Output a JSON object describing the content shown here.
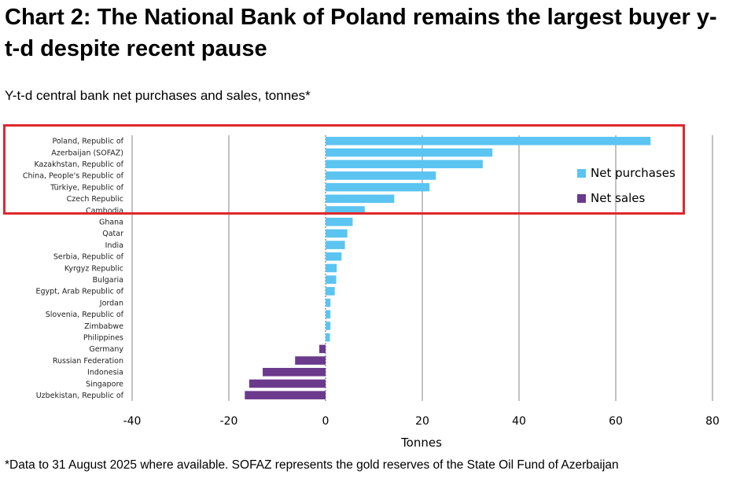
{
  "title": "Chart 2: The National Bank of Poland remains the largest buyer y-t-d despite recent pause",
  "subtitle": "Y-t-d central bank net purchases and sales, tonnes*",
  "footnote": "*Data to 31 August 2025 where available. SOFAZ represents the gold reserves of the State Oil Fund of Azerbaijan",
  "colors": {
    "net_purchases": "#5bc4f1",
    "net_sales": "#6b3a8c",
    "gridline": "#9a9a9a",
    "highlight": "#e0282e"
  },
  "legend": [
    {
      "label": "Net purchases",
      "color": "#5bc4f1"
    },
    {
      "label": "Net sales",
      "color": "#6b3a8c"
    }
  ],
  "chart_data": {
    "type": "bar",
    "orientation": "horizontal",
    "xlabel": "Tonnes",
    "xlim": [
      -40,
      80
    ],
    "xticks": [
      -40,
      -20,
      0,
      20,
      40,
      60,
      80
    ],
    "grid": true,
    "legend_position": "right",
    "categories": [
      "Poland, Republic of",
      "Azerbaijan (SOFAZ)",
      "Kazakhstan, Republic of",
      "China, People's Republic of",
      "Türkiye, Republic of",
      "Czech Republic",
      "Cambodia",
      "Ghana",
      "Qatar",
      "India",
      "Serbia, Republic of",
      "Kyrgyz Republic",
      "Bulgaria",
      "Egypt, Arab Republic of",
      "Jordan",
      "Slovenia, Republic of",
      "Zimbabwe",
      "Philippines",
      "Germany",
      "Russian Federation",
      "Indonesia",
      "Singapore",
      "Uzbekistan, Republic of"
    ],
    "values": [
      67.2,
      34.5,
      32.5,
      22.8,
      21.5,
      14.2,
      8.1,
      5.6,
      4.5,
      4.0,
      3.3,
      2.3,
      2.2,
      1.9,
      1.0,
      1.0,
      1.0,
      0.9,
      -1.3,
      -6.3,
      -13.0,
      -15.8,
      -16.7
    ],
    "highlight_categories": [
      "Poland, Republic of",
      "Azerbaijan (SOFAZ)",
      "Kazakhstan, Republic of",
      "China, People's Republic of",
      "Türkiye, Republic of",
      "Czech Republic",
      "Cambodia"
    ]
  }
}
